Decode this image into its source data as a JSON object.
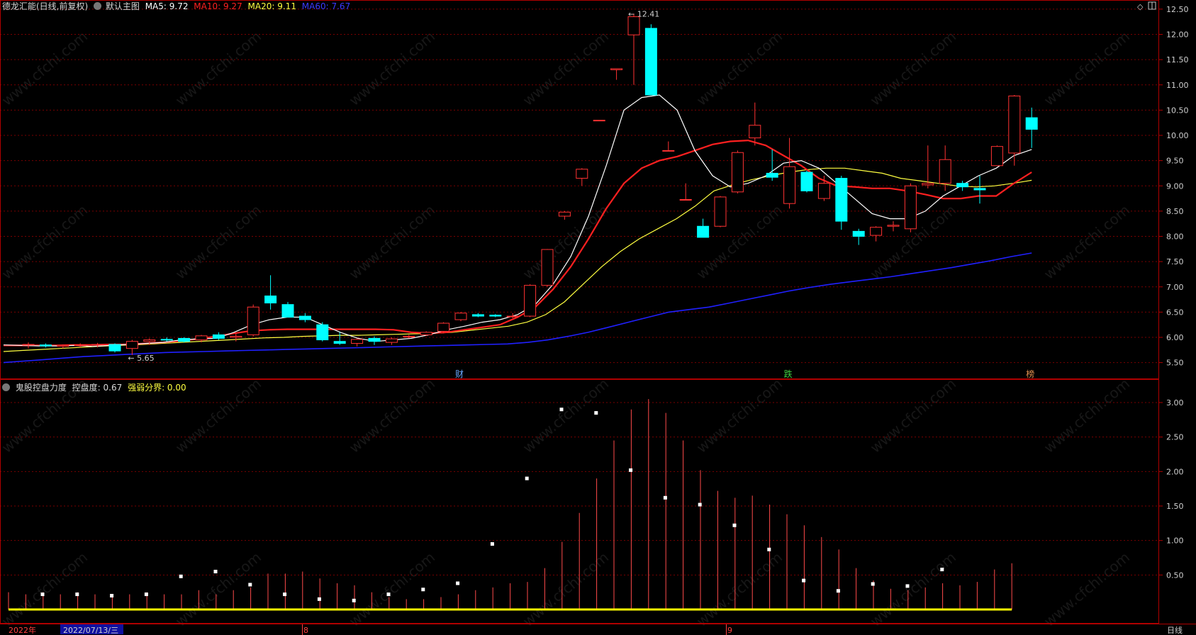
{
  "header": {
    "stock": "德龙汇能(日线,前复权)",
    "main_chart": "默认主图",
    "ma5": "MA5: 9.72",
    "ma10": "MA10: 9.27",
    "ma20": "MA20: 9.11",
    "ma60": "MA60: 7.67"
  },
  "indicator": {
    "name": "鬼股控盘力度",
    "control": "控盘度: 0.67",
    "boundary": "强弱分界: 0.00"
  },
  "price_axis": [
    "12.50",
    "12.00",
    "11.50",
    "11.00",
    "10.50",
    "10.00",
    "9.50",
    "9.00",
    "8.50",
    "8.00",
    "7.50",
    "7.00",
    "6.50",
    "6.00",
    "5.50"
  ],
  "indicator_axis": [
    "3.00",
    "2.50",
    "2.00",
    "1.50",
    "1.00",
    "0.50"
  ],
  "annotations": {
    "high": "12.41",
    "low": "5.65"
  },
  "event_markers": [
    {
      "label": "财",
      "color": "#6aa8ff",
      "index": 25
    },
    {
      "label": "跌",
      "color": "#40d040",
      "index": 44
    },
    {
      "label": "榜",
      "color": "#e09050",
      "index": 58
    }
  ],
  "time_axis": {
    "year": "2022年",
    "cursor_date": "2022/07/13/三",
    "months": [
      "8",
      "9"
    ],
    "period": "日线"
  },
  "watermark": "www.cfchi.com",
  "colors": {
    "up": "#ff3232",
    "down": "#00ffff",
    "ma5": "#ffffff",
    "ma10": "#ff2020",
    "ma20": "#ffff40",
    "ma60": "#2020ff",
    "grid": "#7a0000",
    "axis": "#b00000"
  },
  "chart_data": {
    "type": "candlestick",
    "price_range": [
      5.3,
      12.7
    ],
    "candles": [
      {
        "o": 5.85,
        "h": 5.9,
        "l": 5.78,
        "c": 5.86
      },
      {
        "o": 5.85,
        "h": 5.88,
        "l": 5.8,
        "c": 5.83
      },
      {
        "o": 5.82,
        "h": 5.86,
        "l": 5.78,
        "c": 5.84
      },
      {
        "o": 5.84,
        "h": 5.88,
        "l": 5.8,
        "c": 5.85
      },
      {
        "o": 5.85,
        "h": 5.89,
        "l": 5.8,
        "c": 5.86
      },
      {
        "o": 5.86,
        "h": 5.88,
        "l": 5.7,
        "c": 5.73
      },
      {
        "o": 5.78,
        "h": 5.95,
        "l": 5.65,
        "c": 5.92
      },
      {
        "o": 5.92,
        "h": 5.98,
        "l": 5.85,
        "c": 5.95
      },
      {
        "o": 5.96,
        "h": 6.0,
        "l": 5.92,
        "c": 5.95
      },
      {
        "o": 5.98,
        "h": 6.0,
        "l": 5.9,
        "c": 5.92
      },
      {
        "o": 5.95,
        "h": 6.05,
        "l": 5.9,
        "c": 6.03
      },
      {
        "o": 6.05,
        "h": 6.1,
        "l": 5.95,
        "c": 5.98
      },
      {
        "o": 6.0,
        "h": 6.08,
        "l": 5.92,
        "c": 6.02
      },
      {
        "o": 6.05,
        "h": 6.65,
        "l": 6.02,
        "c": 6.6
      },
      {
        "o": 6.82,
        "h": 7.23,
        "l": 6.55,
        "c": 6.68
      },
      {
        "o": 6.65,
        "h": 6.7,
        "l": 6.4,
        "c": 6.4
      },
      {
        "o": 6.42,
        "h": 6.48,
        "l": 6.3,
        "c": 6.35
      },
      {
        "o": 6.25,
        "h": 6.3,
        "l": 5.92,
        "c": 5.95
      },
      {
        "o": 5.92,
        "h": 6.1,
        "l": 5.85,
        "c": 5.88
      },
      {
        "o": 5.88,
        "h": 5.98,
        "l": 5.82,
        "c": 5.96
      },
      {
        "o": 5.98,
        "h": 6.02,
        "l": 5.85,
        "c": 5.92
      },
      {
        "o": 5.9,
        "h": 6.0,
        "l": 5.85,
        "c": 5.97
      },
      {
        "o": 6.02,
        "h": 6.05,
        "l": 5.98,
        "c": 6.02
      },
      {
        "o": 6.05,
        "h": 6.12,
        "l": 6.03,
        "c": 6.1
      },
      {
        "o": 6.12,
        "h": 6.3,
        "l": 6.08,
        "c": 6.28
      },
      {
        "o": 6.35,
        "h": 6.5,
        "l": 6.32,
        "c": 6.48
      },
      {
        "o": 6.45,
        "h": 6.48,
        "l": 6.4,
        "c": 6.42
      },
      {
        "o": 6.44,
        "h": 6.46,
        "l": 6.4,
        "c": 6.42
      },
      {
        "o": 6.42,
        "h": 6.48,
        "l": 6.38,
        "c": 6.42
      },
      {
        "o": 6.42,
        "h": 7.05,
        "l": 6.4,
        "c": 7.03
      },
      {
        "o": 7.03,
        "h": 7.75,
        "l": 7.0,
        "c": 7.74
      },
      {
        "o": 8.4,
        "h": 8.5,
        "l": 8.33,
        "c": 8.48
      },
      {
        "o": 9.15,
        "h": 9.35,
        "l": 9.0,
        "c": 9.33
      },
      {
        "o": 10.3,
        "h": 10.3,
        "l": 10.3,
        "c": 10.3
      },
      {
        "o": 11.3,
        "h": 11.32,
        "l": 11.1,
        "c": 11.32
      },
      {
        "o": 11.99,
        "h": 12.41,
        "l": 11.0,
        "c": 12.35
      },
      {
        "o": 12.12,
        "h": 12.2,
        "l": 10.8,
        "c": 10.8
      },
      {
        "o": 9.7,
        "h": 9.88,
        "l": 9.7,
        "c": 9.7
      },
      {
        "o": 8.73,
        "h": 9.05,
        "l": 8.73,
        "c": 8.73
      },
      {
        "o": 8.2,
        "h": 8.35,
        "l": 7.98,
        "c": 7.98
      },
      {
        "o": 8.2,
        "h": 8.8,
        "l": 8.18,
        "c": 8.78
      },
      {
        "o": 8.88,
        "h": 9.7,
        "l": 8.85,
        "c": 9.66
      },
      {
        "o": 9.95,
        "h": 10.65,
        "l": 9.8,
        "c": 10.2
      },
      {
        "o": 9.25,
        "h": 9.72,
        "l": 9.1,
        "c": 9.17
      },
      {
        "o": 8.65,
        "h": 9.95,
        "l": 8.55,
        "c": 9.38
      },
      {
        "o": 9.27,
        "h": 9.3,
        "l": 8.87,
        "c": 8.9
      },
      {
        "o": 8.75,
        "h": 9.2,
        "l": 8.7,
        "c": 9.05
      },
      {
        "o": 9.15,
        "h": 9.2,
        "l": 8.13,
        "c": 8.3
      },
      {
        "o": 8.1,
        "h": 8.15,
        "l": 7.83,
        "c": 8.0
      },
      {
        "o": 8.02,
        "h": 8.2,
        "l": 7.9,
        "c": 8.18
      },
      {
        "o": 8.2,
        "h": 8.3,
        "l": 8.1,
        "c": 8.22
      },
      {
        "o": 8.15,
        "h": 9.05,
        "l": 8.08,
        "c": 9.0
      },
      {
        "o": 9.02,
        "h": 9.8,
        "l": 8.95,
        "c": 9.05
      },
      {
        "o": 9.05,
        "h": 9.8,
        "l": 8.9,
        "c": 9.52
      },
      {
        "o": 9.05,
        "h": 9.1,
        "l": 8.9,
        "c": 8.98
      },
      {
        "o": 8.95,
        "h": 9.2,
        "l": 8.65,
        "c": 8.92
      },
      {
        "o": 9.4,
        "h": 9.8,
        "l": 9.4,
        "c": 9.78
      },
      {
        "o": 9.65,
        "h": 10.8,
        "l": 9.4,
        "c": 10.78
      },
      {
        "o": 10.35,
        "h": 10.55,
        "l": 9.75,
        "c": 10.12
      }
    ],
    "ma5": [
      5.85,
      5.84,
      5.83,
      5.83,
      5.84,
      5.82,
      5.84,
      5.86,
      5.88,
      5.9,
      5.95,
      5.97,
      5.98,
      6.1,
      6.25,
      6.35,
      6.4,
      6.4,
      6.25,
      6.1,
      5.98,
      5.92,
      5.95,
      5.98,
      6.05,
      6.15,
      6.22,
      6.3,
      6.35,
      6.45,
      6.65,
      7.05,
      7.6,
      8.4,
      9.4,
      10.5,
      10.75,
      10.8,
      10.5,
      9.7,
      9.2,
      8.98,
      9.05,
      9.2,
      9.45,
      9.5,
      9.35,
      9.05,
      8.75,
      8.45,
      8.35,
      8.35,
      8.5,
      8.8,
      9.0,
      9.2,
      9.35,
      9.6,
      9.72
    ],
    "ma10": [
      5.84,
      5.84,
      5.84,
      5.84,
      5.85,
      5.85,
      5.86,
      5.86,
      5.88,
      5.9,
      5.93,
      5.97,
      6.02,
      6.08,
      6.13,
      6.15,
      6.16,
      6.16,
      6.16,
      6.16,
      6.16,
      6.16,
      6.15,
      6.1,
      6.08,
      6.1,
      6.15,
      6.2,
      6.25,
      6.4,
      6.6,
      6.95,
      7.4,
      7.95,
      8.55,
      9.05,
      9.35,
      9.5,
      9.58,
      9.7,
      9.82,
      9.88,
      9.9,
      9.8,
      9.6,
      9.4,
      9.15,
      9.0,
      8.98,
      8.95,
      8.95,
      8.9,
      8.83,
      8.75,
      8.75,
      8.8,
      8.8,
      9.05,
      9.27
    ],
    "ma20": [
      5.72,
      5.74,
      5.76,
      5.78,
      5.8,
      5.82,
      5.84,
      5.85,
      5.87,
      5.89,
      5.91,
      5.93,
      5.95,
      5.97,
      5.99,
      6.0,
      6.02,
      6.03,
      6.04,
      6.04,
      6.05,
      6.06,
      6.07,
      6.08,
      6.1,
      6.14,
      6.18,
      6.22,
      6.3,
      6.45,
      6.7,
      7.05,
      7.4,
      7.7,
      7.95,
      8.15,
      8.35,
      8.6,
      8.9,
      9.02,
      9.12,
      9.2,
      9.27,
      9.32,
      9.35,
      9.35,
      9.3,
      9.25,
      9.15,
      9.1,
      9.05,
      9.0,
      8.98,
      9.0,
      9.05,
      9.11
    ],
    "ma60": [
      5.5,
      5.53,
      5.56,
      5.59,
      5.62,
      5.64,
      5.66,
      5.68,
      5.7,
      5.71,
      5.72,
      5.73,
      5.74,
      5.75,
      5.76,
      5.77,
      5.78,
      5.79,
      5.8,
      5.81,
      5.82,
      5.83,
      5.84,
      5.85,
      5.86,
      5.87,
      5.9,
      5.95,
      6.02,
      6.1,
      6.2,
      6.3,
      6.4,
      6.5,
      6.55,
      6.6,
      6.68,
      6.76,
      6.84,
      6.92,
      6.99,
      7.05,
      7.1,
      7.15,
      7.2,
      7.26,
      7.32,
      7.38,
      7.45,
      7.52,
      7.6,
      7.67
    ],
    "indicator": {
      "bars": [
        0.25,
        0.22,
        0.25,
        0.22,
        0.25,
        0.22,
        0.22,
        0.22,
        0.25,
        0.22,
        0.22,
        0.28,
        0.22,
        0.28,
        0.32,
        0.52,
        0.52,
        0.55,
        0.45,
        0.38,
        0.35,
        0.25,
        0.18,
        0.15,
        0.15,
        0.18,
        0.22,
        0.28,
        0.32,
        0.38,
        0.4,
        0.6,
        0.98,
        1.4,
        1.9,
        2.45,
        2.9,
        3.05,
        2.85,
        2.45,
        2.02,
        1.72,
        1.62,
        1.65,
        1.52,
        1.38,
        1.22,
        1.05,
        0.87,
        0.6,
        0.42,
        0.3,
        0.28,
        0.32,
        0.38,
        0.35,
        0.4,
        0.58,
        0.67
      ],
      "points": [
        0.22,
        0.22,
        0.2,
        0.22,
        0.48,
        0.55,
        0.36,
        0.22,
        0.15,
        0.13,
        0.22,
        0.29,
        0.38,
        0.95,
        1.9,
        2.9,
        2.85,
        2.02,
        1.62,
        1.52,
        1.22,
        0.87,
        0.42,
        0.27,
        0.37,
        0.34,
        0.58
      ],
      "range": [
        0,
        3.25
      ],
      "boundary": 0.0
    }
  }
}
